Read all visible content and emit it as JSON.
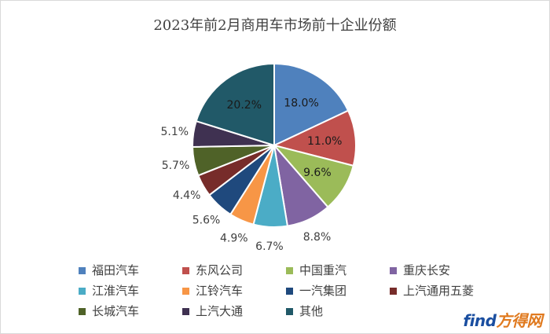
{
  "chart_data": {
    "type": "pie",
    "title": "2023年前2月商用车市场前十企业份额",
    "slices": [
      {
        "label": "福田汽车",
        "value": 18.0,
        "display": "18.0%",
        "color": "#4f81bd"
      },
      {
        "label": "东风公司",
        "value": 11.0,
        "display": "11.0%",
        "color": "#c0504d"
      },
      {
        "label": "中国重汽",
        "value": 9.6,
        "display": "9.6%",
        "color": "#9bbb59"
      },
      {
        "label": "重庆长安",
        "value": 8.8,
        "display": "8.8%",
        "color": "#8064a2"
      },
      {
        "label": "江淮汽车",
        "value": 6.7,
        "display": "6.7%",
        "color": "#4bacc6"
      },
      {
        "label": "江铃汽车",
        "value": 4.9,
        "display": "4.9%",
        "color": "#f79646"
      },
      {
        "label": "一汽集团",
        "value": 5.6,
        "display": "5.6%",
        "color": "#1f497d"
      },
      {
        "label": "上汽通用五菱",
        "value": 4.4,
        "display": "4.4%",
        "color": "#772c2a"
      },
      {
        "label": "长城汽车",
        "value": 5.7,
        "display": "5.7%",
        "color": "#4f6228"
      },
      {
        "label": "上汽大通",
        "value": 5.1,
        "display": "5.1%",
        "color": "#3f3151"
      },
      {
        "label": "其他",
        "value": 20.2,
        "display": "20.2%",
        "color": "#215968"
      }
    ],
    "legend_position": "bottom"
  },
  "watermark": {
    "main": "find",
    "cn": "方得网"
  }
}
